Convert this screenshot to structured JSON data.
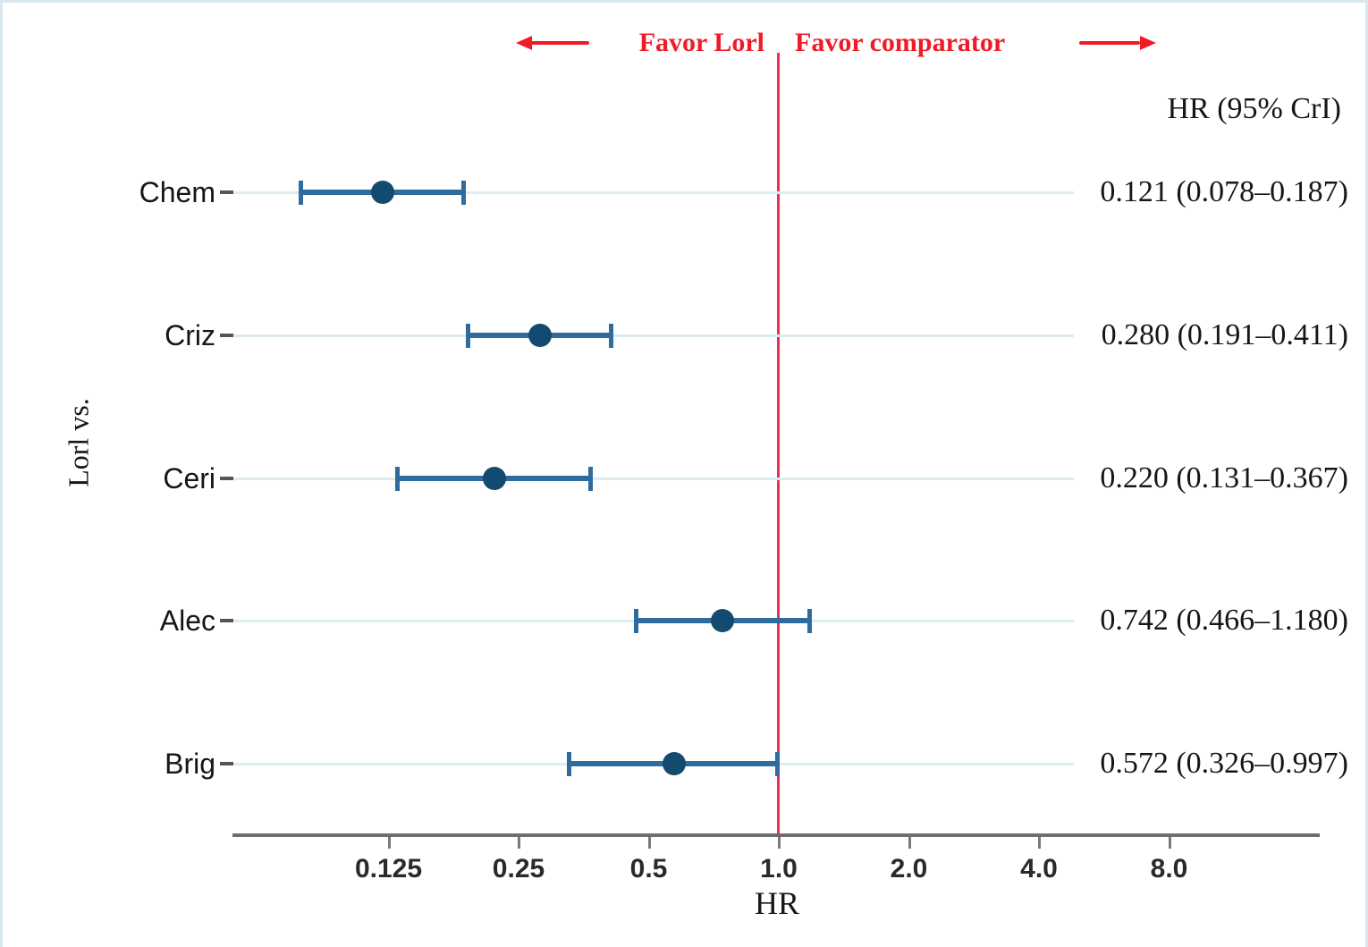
{
  "chart_data": {
    "type": "scatter",
    "variant": "forest-plot",
    "title": "",
    "xlabel": "HR",
    "ylabel": "Lorl vs.",
    "x_scale": "log2",
    "x_ticks": [
      {
        "value": 0.125,
        "label": "0.125"
      },
      {
        "value": 0.25,
        "label": "0.25"
      },
      {
        "value": 0.5,
        "label": "0.5"
      },
      {
        "value": 1.0,
        "label": "1.0"
      },
      {
        "value": 2.0,
        "label": "2.0"
      },
      {
        "value": 4.0,
        "label": "4.0"
      },
      {
        "value": 8.0,
        "label": "8.0"
      }
    ],
    "reference_line_value": 1.0,
    "annotations": {
      "left": "Favor Lorl",
      "right": "Favor comparator"
    },
    "column_header": "HR (95% CrI)",
    "rows": [
      {
        "label": "Chem",
        "hr": 0.121,
        "lo": 0.078,
        "hi": 0.187,
        "text": "0.121 (0.078–0.187)"
      },
      {
        "label": "Criz",
        "hr": 0.28,
        "lo": 0.191,
        "hi": 0.411,
        "text": "0.280 (0.191–0.411)"
      },
      {
        "label": "Ceri",
        "hr": 0.22,
        "lo": 0.131,
        "hi": 0.367,
        "text": "0.220 (0.131–0.367)"
      },
      {
        "label": "Alec",
        "hr": 0.742,
        "lo": 0.466,
        "hi": 1.18,
        "text": "0.742 (0.466–1.180)"
      },
      {
        "label": "Brig",
        "hr": 0.572,
        "lo": 0.326,
        "hi": 0.997,
        "text": "0.572 (0.326–0.997)"
      }
    ],
    "colors": {
      "ci_line": "#2f6b9d",
      "marker": "#134a70",
      "gridline": "#dcecf1",
      "reference_line": "#ef2c52",
      "annotation_red": "#ef1c27",
      "axis_line": "#6e6e6e",
      "tick_mark": "#7a7a7a",
      "label_dash": "#555555"
    },
    "legend": null,
    "grid": "horizontal-row-lines"
  }
}
